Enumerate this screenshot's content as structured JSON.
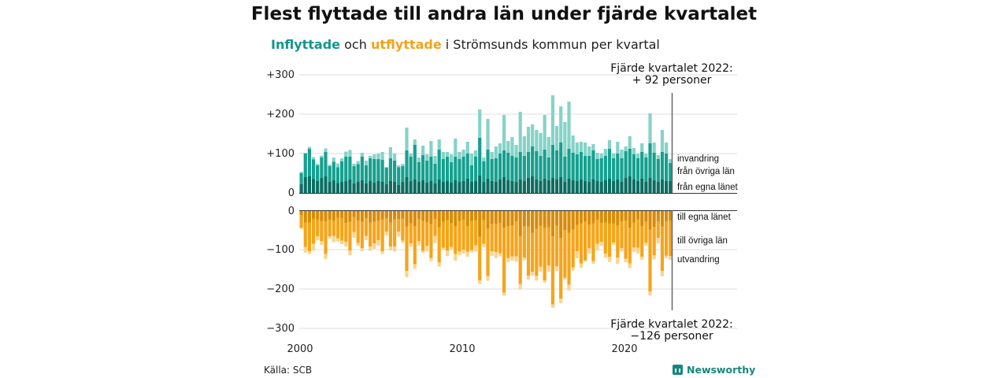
{
  "title": "Flest flyttade till andra län under fjärde kvartalet",
  "subtitle": {
    "inflow": "Inflyttade",
    "and": " och ",
    "outflow": "utflyttade",
    "rest": " i Strömsunds kommun per kvartal"
  },
  "source": "Källa: SCB",
  "brand": "Newsworthy",
  "colors": {
    "in_local": "#0c6d62",
    "in_county": "#16a08f",
    "in_immigration": "#85d3c8",
    "out_local": "#d98b07",
    "out_county": "#f6a419",
    "out_emigration": "#f9d592"
  },
  "chart_data": {
    "type": "bar",
    "stacked": true,
    "x_ticks": [
      "2000",
      "2010",
      "2020"
    ],
    "y_ticks_top": [
      "+300",
      "+200",
      "+100",
      "0"
    ],
    "y_ticks_bottom": [
      "0",
      "−100",
      "−200",
      "−300"
    ],
    "ylim_top": [
      0,
      300
    ],
    "ylim_bottom": [
      -300,
      0
    ],
    "segment_labels_in": [
      "invandring",
      "från övriga län",
      "från egna länet"
    ],
    "segment_labels_out": [
      "till egna länet",
      "till övriga län",
      "utvandring"
    ],
    "annotation_top": [
      "Fjärde kvartalet 2022:",
      "+ 92 personer"
    ],
    "annotation_bottom": [
      "Fjärde kvartalet 2022:",
      "−126 personer"
    ],
    "start_year": 2000,
    "in_local": [
      22,
      40,
      42,
      35,
      30,
      38,
      42,
      28,
      32,
      25,
      28,
      30,
      34,
      24,
      28,
      32,
      24,
      30,
      26,
      30,
      28,
      22,
      30,
      28,
      20,
      28,
      40,
      30,
      34,
      28,
      32,
      26,
      30,
      24,
      34,
      28,
      30,
      26,
      32,
      28,
      30,
      36,
      28,
      30,
      44,
      28,
      36,
      30,
      28,
      34,
      40,
      32,
      30,
      28,
      34,
      30,
      38,
      42,
      34,
      30,
      36,
      32,
      38,
      34,
      40,
      28,
      36,
      32,
      30,
      34,
      30,
      28,
      34,
      30,
      28,
      32,
      36,
      30,
      34,
      28,
      38,
      42,
      34,
      30,
      36,
      28,
      38,
      32,
      28,
      34,
      30,
      30
    ],
    "in_county": [
      28,
      60,
      70,
      50,
      40,
      52,
      62,
      40,
      47,
      40,
      52,
      62,
      58,
      44,
      45,
      60,
      46,
      58,
      60,
      56,
      56,
      42,
      58,
      54,
      45,
      40,
      68,
      62,
      88,
      50,
      64,
      56,
      62,
      50,
      76,
      58,
      62,
      52,
      60,
      58,
      62,
      64,
      42,
      62,
      96,
      52,
      74,
      56,
      60,
      66,
      68,
      70,
      64,
      62,
      70,
      64,
      66,
      76,
      72,
      64,
      74,
      58,
      84,
      74,
      88,
      64,
      76,
      70,
      68,
      70,
      64,
      66,
      74,
      56,
      60,
      62,
      76,
      58,
      66,
      60,
      68,
      70,
      64,
      58,
      68,
      62,
      88,
      70,
      58,
      70,
      70,
      46
    ],
    "in_immigration": [
      4,
      2,
      5,
      6,
      4,
      5,
      9,
      4,
      11,
      10,
      8,
      13,
      17,
      6,
      8,
      10,
      12,
      6,
      12,
      14,
      20,
      2,
      28,
      18,
      5,
      6,
      58,
      8,
      14,
      12,
      24,
      16,
      40,
      20,
      26,
      18,
      12,
      20,
      46,
      18,
      18,
      30,
      30,
      16,
      72,
      10,
      78,
      18,
      30,
      26,
      90,
      30,
      48,
      32,
      102,
      50,
      64,
      56,
      54,
      58,
      88,
      52,
      126,
      62,
      92,
      88,
      120,
      44,
      30,
      26,
      34,
      24,
      16,
      16,
      12,
      18,
      22,
      12,
      30,
      22,
      12,
      32,
      16,
      12,
      22,
      10,
      76,
      26,
      10,
      56,
      28,
      10
    ]
  }
}
